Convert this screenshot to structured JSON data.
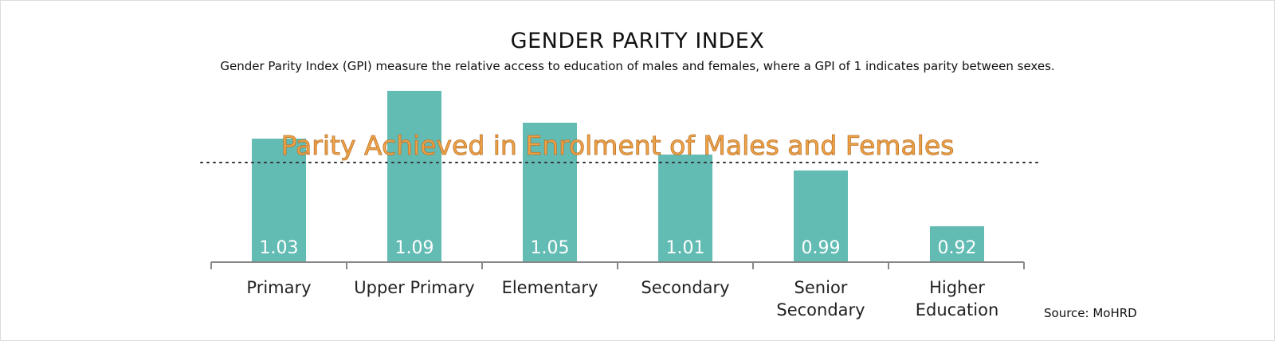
{
  "chart_data": {
    "type": "bar",
    "title": "GENDER PARITY INDEX",
    "subtitle": "Gender Parity Index (GPI) measure the relative access to education of males and females, where a GPI of 1 indicates parity between sexes.",
    "categories": [
      [
        "Primary"
      ],
      [
        "Upper Primary"
      ],
      [
        "Elementary"
      ],
      [
        "Secondary"
      ],
      [
        "Senior",
        "Secondary"
      ],
      [
        "Higher",
        "Education"
      ]
    ],
    "values": [
      1.03,
      1.09,
      1.05,
      1.01,
      0.99,
      0.92
    ],
    "value_labels": [
      "1.03",
      "1.09",
      "1.05",
      "1.01",
      "0.99",
      "0.92"
    ],
    "reference_line": {
      "value": 1.0,
      "style": "dotted"
    },
    "annotation": "Parity Achieved in Enrolment of Males and Females",
    "source": "Source: MoHRD",
    "grid": false,
    "colors": {
      "bar": "#63bcb4",
      "annotation": "#f0a347",
      "axis": "#888888"
    }
  }
}
